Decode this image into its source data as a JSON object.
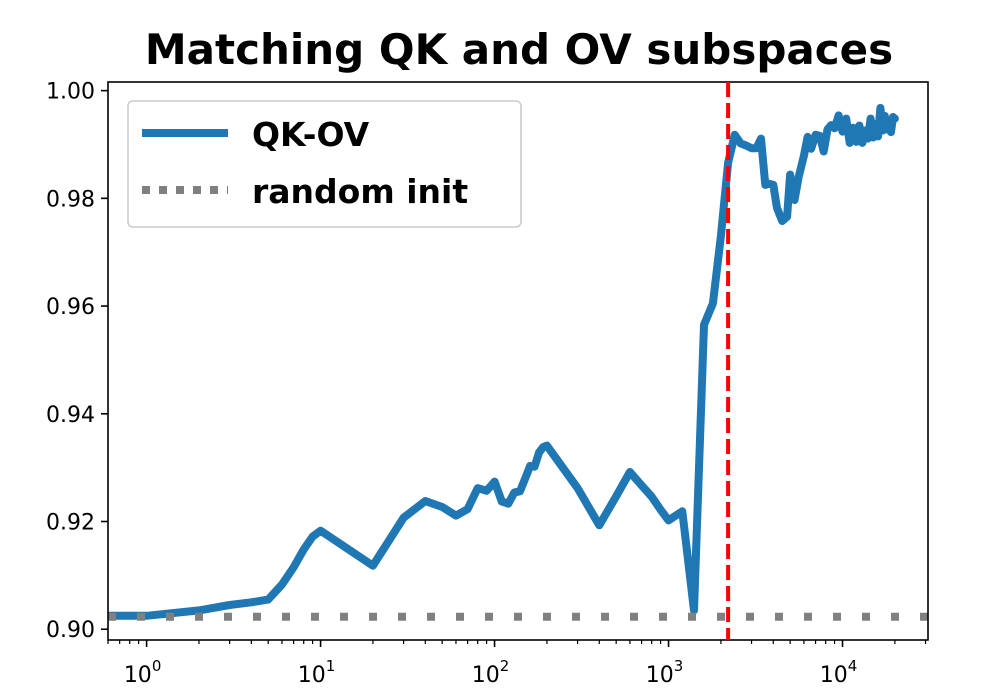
{
  "chart_data": {
    "type": "line",
    "title": "Matching QK and OV subspaces",
    "xlabel": "",
    "ylabel": "",
    "x_scale": "log",
    "xlim": [
      0.6,
      31000
    ],
    "ylim": [
      0.898,
      1.0016
    ],
    "x_ticks": [
      {
        "value": 1,
        "base": "10",
        "exp": "0"
      },
      {
        "value": 10,
        "base": "10",
        "exp": "1"
      },
      {
        "value": 100,
        "base": "10",
        "exp": "2"
      },
      {
        "value": 1000,
        "base": "10",
        "exp": "3"
      },
      {
        "value": 10000,
        "base": "10",
        "exp": "4"
      }
    ],
    "y_ticks": [
      {
        "value": 0.9,
        "label": "0.90"
      },
      {
        "value": 0.92,
        "label": "0.92"
      },
      {
        "value": 0.94,
        "label": "0.94"
      },
      {
        "value": 0.96,
        "label": "0.96"
      },
      {
        "value": 0.98,
        "label": "0.98"
      },
      {
        "value": 1.0,
        "label": "1.00"
      }
    ],
    "grid": false,
    "legend_position": "top-left",
    "series": [
      {
        "name": "QK-OV",
        "color": "#1f77b4",
        "style": "solid",
        "x": [
          0.6,
          1,
          2,
          3,
          4,
          5,
          6,
          7,
          8,
          9,
          10,
          20,
          30,
          40,
          50,
          60,
          70,
          80,
          90,
          100,
          110,
          120,
          130,
          140,
          150,
          160,
          170,
          180,
          190,
          200,
          300,
          400,
          500,
          600,
          700,
          800,
          900,
          1000,
          1200,
          1400,
          1600,
          1800,
          2000,
          2200,
          2400,
          2600,
          2800,
          3000,
          3200,
          3400,
          3600,
          3800,
          4000,
          4200,
          4500,
          4800,
          5000,
          5300,
          5600,
          6000,
          6300,
          6600,
          7000,
          7400,
          7800,
          8200,
          8600,
          9000,
          9500,
          10000,
          10500,
          11000,
          11500,
          12000,
          12500,
          13000,
          13500,
          14000,
          14500,
          15000,
          15500,
          16000,
          16500,
          17000,
          17500,
          18000,
          18500,
          19000,
          19500,
          20000
        ],
        "y": [
          0.9025,
          0.9025,
          0.9035,
          0.9045,
          0.905,
          0.9055,
          0.9083,
          0.9115,
          0.9148,
          0.9172,
          0.9183,
          0.9118,
          0.9207,
          0.9238,
          0.9227,
          0.9211,
          0.9223,
          0.9262,
          0.9257,
          0.9274,
          0.9237,
          0.9233,
          0.9254,
          0.9256,
          0.928,
          0.9303,
          0.9302,
          0.9328,
          0.9338,
          0.9341,
          0.9262,
          0.9193,
          0.9247,
          0.9292,
          0.9267,
          0.9246,
          0.9222,
          0.9202,
          0.9219,
          0.9035,
          0.9565,
          0.9605,
          0.973,
          0.9866,
          0.9918,
          0.9902,
          0.9898,
          0.9893,
          0.9893,
          0.9911,
          0.9825,
          0.9827,
          0.9825,
          0.9782,
          0.9758,
          0.9766,
          0.9844,
          0.9797,
          0.984,
          0.9879,
          0.9914,
          0.9892,
          0.9918,
          0.9916,
          0.9887,
          0.9928,
          0.9936,
          0.993,
          0.9954,
          0.9924,
          0.9948,
          0.9903,
          0.9931,
          0.9905,
          0.9935,
          0.9903,
          0.9926,
          0.9911,
          0.9948,
          0.9913,
          0.9938,
          0.9915,
          0.9968,
          0.9926,
          0.9953,
          0.9928,
          0.9943,
          0.9923,
          0.9951,
          0.9948
        ]
      },
      {
        "name": "random init",
        "color": "#808080",
        "style": "dotted",
        "x": [
          0.6,
          31000
        ],
        "y": [
          0.9023,
          0.9023
        ]
      }
    ],
    "annotations": [
      {
        "type": "vline",
        "x": 2200,
        "color": "#ff0000",
        "style": "dashed"
      }
    ]
  }
}
